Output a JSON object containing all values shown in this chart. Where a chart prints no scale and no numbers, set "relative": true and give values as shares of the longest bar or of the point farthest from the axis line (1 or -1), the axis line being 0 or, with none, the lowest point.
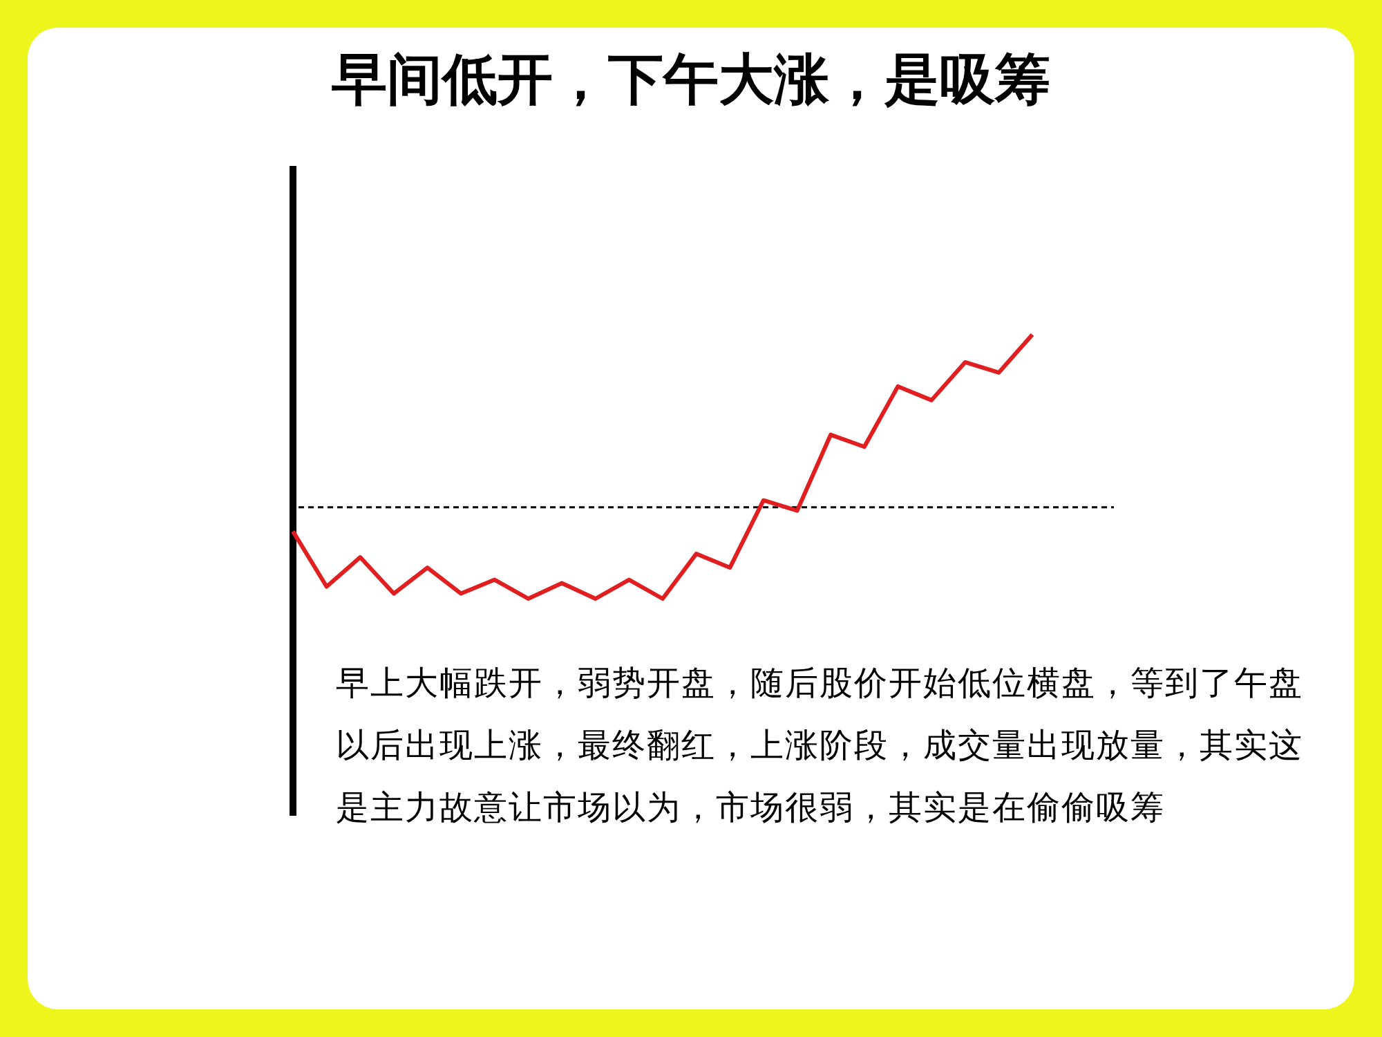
{
  "chart_data": {
    "type": "line",
    "title": "早间低开，下午大涨，是吸筹",
    "relative": true,
    "categories": [
      null,
      null,
      null,
      null,
      null,
      null,
      null,
      null,
      null,
      null,
      null,
      null,
      null,
      null,
      null,
      null,
      null,
      null,
      null,
      null,
      null,
      null,
      null
    ],
    "series": [
      {
        "color": "#e02020",
        "values": [
          -0.14,
          -0.46,
          -0.29,
          -0.5,
          -0.35,
          -0.5,
          -0.42,
          -0.53,
          -0.44,
          -0.53,
          -0.42,
          -0.53,
          -0.27,
          -0.35,
          0.04,
          -0.02,
          0.42,
          0.35,
          0.7,
          0.62,
          0.84,
          0.78,
          1
        ]
      }
    ],
    "ref_lines": [
      {
        "axis": "y",
        "value": 0,
        "color": "#000000",
        "line_style": "dashed"
      }
    ],
    "annotations": [
      "早上大幅跌开，弱势开盘，随后股价开始低位横盘，等到了午盘以后出现上涨，最终翻红，上涨阶段，成交量出现放量，其实这是主力故意让市场以为，市场很弱，其实是在偷偷吸筹"
    ],
    "marker": "none",
    "line_style": "solid",
    "grid": false,
    "legend": false
  }
}
